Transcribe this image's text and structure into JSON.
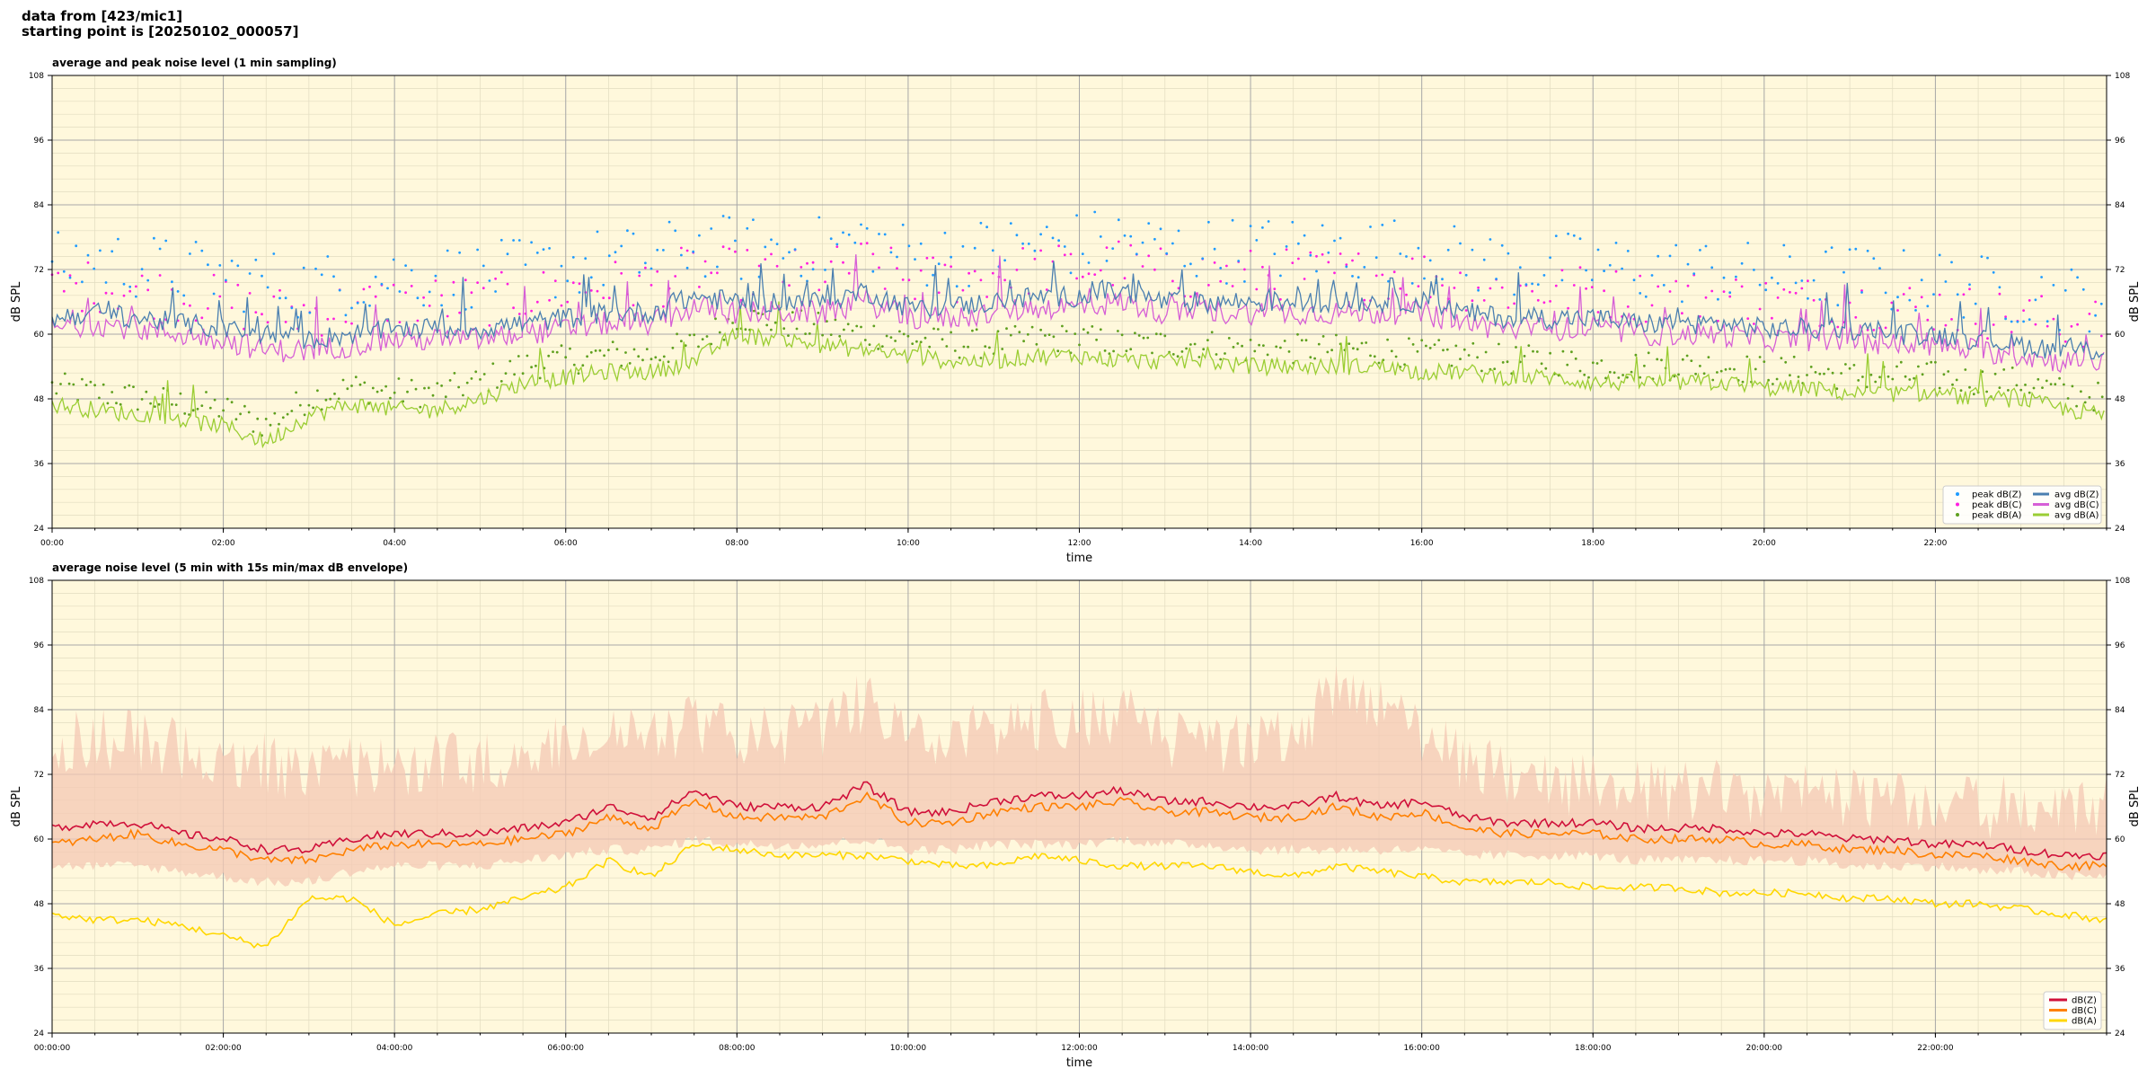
{
  "header": {
    "line1": "data from [423/mic1]",
    "line2": "starting point is [20250102_000057]"
  },
  "colors": {
    "plot_bg": "#fff8dc",
    "grid_major": "#a8a8a8",
    "grid_minor": "#e2dcc0",
    "peak_z": "#1f9bff",
    "peak_c": "#ff1ee0",
    "peak_a": "#5fa01f",
    "avg_z": "#4a7fb0",
    "avg_c": "#d65fd6",
    "avg_a": "#9acd32",
    "env": "#f4c8b4",
    "dbz": "#d0103a",
    "dbc": "#ff8000",
    "dba": "#ffd700"
  },
  "chart_data": [
    {
      "type": "line",
      "title": "average and peak noise level (1 min sampling)",
      "xlabel": "time",
      "ylabel": "dB SPL",
      "ylim": [
        24,
        108
      ],
      "xlim": [
        0,
        24
      ],
      "yticks": [
        "24",
        "36",
        "48",
        "60",
        "72",
        "84",
        "96",
        "108"
      ],
      "xticks": [
        "00:00",
        "02:00",
        "04:00",
        "06:00",
        "08:00",
        "10:00",
        "12:00",
        "14:00",
        "16:00",
        "18:00",
        "20:00",
        "22:00"
      ],
      "grid": true,
      "legend_position": "bottom-right",
      "legend": [
        "peak dB(Z)",
        "peak dB(C)",
        "peak dB(A)",
        "avg dB(Z)",
        "avg dB(C)",
        "avg dB(A)"
      ],
      "x_hours": [
        0,
        0.5,
        1,
        1.5,
        2,
        2.5,
        3,
        3.5,
        4,
        4.5,
        5,
        5.5,
        6,
        6.5,
        7,
        7.5,
        8,
        8.5,
        9,
        9.5,
        10,
        10.5,
        11,
        11.5,
        12,
        12.5,
        13,
        13.5,
        14,
        14.5,
        15,
        15.5,
        16,
        16.5,
        17,
        17.5,
        18,
        18.5,
        19,
        19.5,
        20,
        20.5,
        21,
        21.5,
        22,
        22.5,
        23,
        23.5,
        24
      ],
      "series": [
        {
          "name": "avg dB(Z)",
          "style": "line",
          "values": [
            63,
            64,
            63,
            62,
            61,
            60,
            59,
            60,
            61,
            61,
            61,
            62,
            63,
            64,
            64,
            67,
            66,
            66,
            66,
            68,
            65,
            65,
            66,
            67,
            67,
            68,
            66,
            66,
            66,
            66,
            66,
            66,
            66,
            64,
            63,
            63,
            63,
            62,
            62,
            62,
            61,
            61,
            61,
            60,
            60,
            59,
            58,
            57,
            57
          ]
        },
        {
          "name": "avg dB(C)",
          "style": "line",
          "values": [
            61,
            62,
            61,
            60,
            59,
            57,
            57,
            58,
            59,
            59,
            59,
            60,
            61,
            62,
            62,
            65,
            64,
            64,
            64,
            66,
            63,
            63,
            64,
            65,
            65,
            66,
            64,
            64,
            64,
            64,
            64,
            64,
            64,
            62,
            61,
            61,
            61,
            60,
            60,
            60,
            59,
            59,
            59,
            58,
            58,
            57,
            56,
            55,
            55
          ]
        },
        {
          "name": "avg dB(A)",
          "style": "line",
          "values": [
            47,
            46,
            45,
            44,
            43,
            40,
            45,
            47,
            46,
            46,
            48,
            51,
            52,
            53,
            53,
            55,
            60,
            59,
            58,
            57,
            56,
            55,
            55,
            56,
            56,
            55,
            55,
            55,
            54,
            54,
            54,
            54,
            53,
            53,
            52,
            52,
            51,
            51,
            51,
            51,
            50,
            50,
            49,
            49,
            49,
            48,
            48,
            46,
            45
          ]
        },
        {
          "name": "peak dB(Z)",
          "style": "dots",
          "offset": 9
        },
        {
          "name": "peak dB(C)",
          "style": "dots",
          "offset": 7
        },
        {
          "name": "peak dB(A)",
          "style": "dots",
          "offset": 4
        }
      ]
    },
    {
      "type": "line",
      "title": "average noise level (5 min with 15s min/max dB envelope)",
      "xlabel": "time",
      "ylabel": "dB SPL",
      "ylim": [
        24,
        108
      ],
      "xlim": [
        0,
        24
      ],
      "yticks": [
        "24",
        "36",
        "48",
        "60",
        "72",
        "84",
        "96",
        "108"
      ],
      "xticks": [
        "00:00:00",
        "02:00:00",
        "04:00:00",
        "06:00:00",
        "08:00:00",
        "10:00:00",
        "12:00:00",
        "14:00:00",
        "16:00:00",
        "18:00:00",
        "20:00:00",
        "22:00:00"
      ],
      "grid": true,
      "legend_position": "bottom-right",
      "legend": [
        "dB(Z)",
        "dB(C)",
        "dB(A)"
      ],
      "x_hours": [
        0,
        0.5,
        1,
        1.5,
        2,
        2.5,
        3,
        3.5,
        4,
        4.5,
        5,
        5.5,
        6,
        6.5,
        7,
        7.5,
        8,
        8.5,
        9,
        9.5,
        10,
        10.5,
        11,
        11.5,
        12,
        12.5,
        13,
        13.5,
        14,
        14.5,
        15,
        15.5,
        16,
        16.5,
        17,
        17.5,
        18,
        18.5,
        19,
        19.5,
        20,
        20.5,
        21,
        21.5,
        22,
        22.5,
        23,
        23.5,
        24
      ],
      "series": [
        {
          "name": "dB(Z)",
          "style": "line",
          "values": [
            62,
            63,
            63,
            61,
            60,
            58,
            58,
            60,
            61,
            61,
            61,
            62,
            63,
            66,
            64,
            69,
            66,
            66,
            66,
            70,
            65,
            65,
            67,
            68,
            68,
            69,
            67,
            67,
            66,
            66,
            68,
            66,
            67,
            64,
            63,
            63,
            63,
            62,
            62,
            62,
            61,
            61,
            60,
            60,
            59,
            59,
            58,
            57,
            57
          ]
        },
        {
          "name": "dB(C)",
          "style": "line",
          "values": [
            59,
            60,
            61,
            59,
            58,
            56,
            56,
            58,
            59,
            59,
            59,
            60,
            61,
            64,
            62,
            67,
            64,
            64,
            64,
            68,
            63,
            63,
            65,
            66,
            66,
            67,
            65,
            65,
            64,
            64,
            66,
            64,
            65,
            62,
            61,
            61,
            61,
            60,
            60,
            60,
            59,
            59,
            58,
            58,
            57,
            57,
            56,
            55,
            55
          ]
        },
        {
          "name": "dB(A)",
          "style": "line",
          "values": [
            46,
            45,
            45,
            44,
            42,
            40,
            49,
            49,
            44,
            46,
            47,
            49,
            51,
            56,
            53,
            59,
            58,
            57,
            57,
            57,
            56,
            55,
            55,
            57,
            56,
            55,
            55,
            55,
            54,
            53,
            55,
            54,
            53,
            52,
            52,
            52,
            51,
            51,
            51,
            50,
            50,
            50,
            49,
            49,
            48,
            48,
            47,
            46,
            45
          ]
        },
        {
          "name": "envelope max",
          "style": "band",
          "values": [
            84,
            85,
            84,
            83,
            82,
            80,
            78,
            79,
            80,
            80,
            80,
            82,
            84,
            86,
            85,
            88,
            85,
            85,
            86,
            92,
            84,
            84,
            86,
            88,
            88,
            90,
            84,
            84,
            84,
            84,
            94,
            90,
            86,
            80,
            78,
            76,
            76,
            75,
            75,
            75,
            74,
            74,
            74,
            73,
            73,
            72,
            72,
            72,
            72
          ]
        },
        {
          "name": "envelope min",
          "style": "band",
          "values": [
            54,
            54,
            54,
            53,
            52,
            51,
            51,
            53,
            54,
            54,
            54,
            55,
            56,
            57,
            57,
            59,
            58,
            58,
            58,
            59,
            57,
            57,
            58,
            58,
            58,
            59,
            58,
            58,
            57,
            57,
            57,
            57,
            57,
            56,
            56,
            56,
            56,
            55,
            55,
            55,
            55,
            55,
            54,
            54,
            54,
            53,
            53,
            52,
            52
          ]
        }
      ]
    }
  ]
}
